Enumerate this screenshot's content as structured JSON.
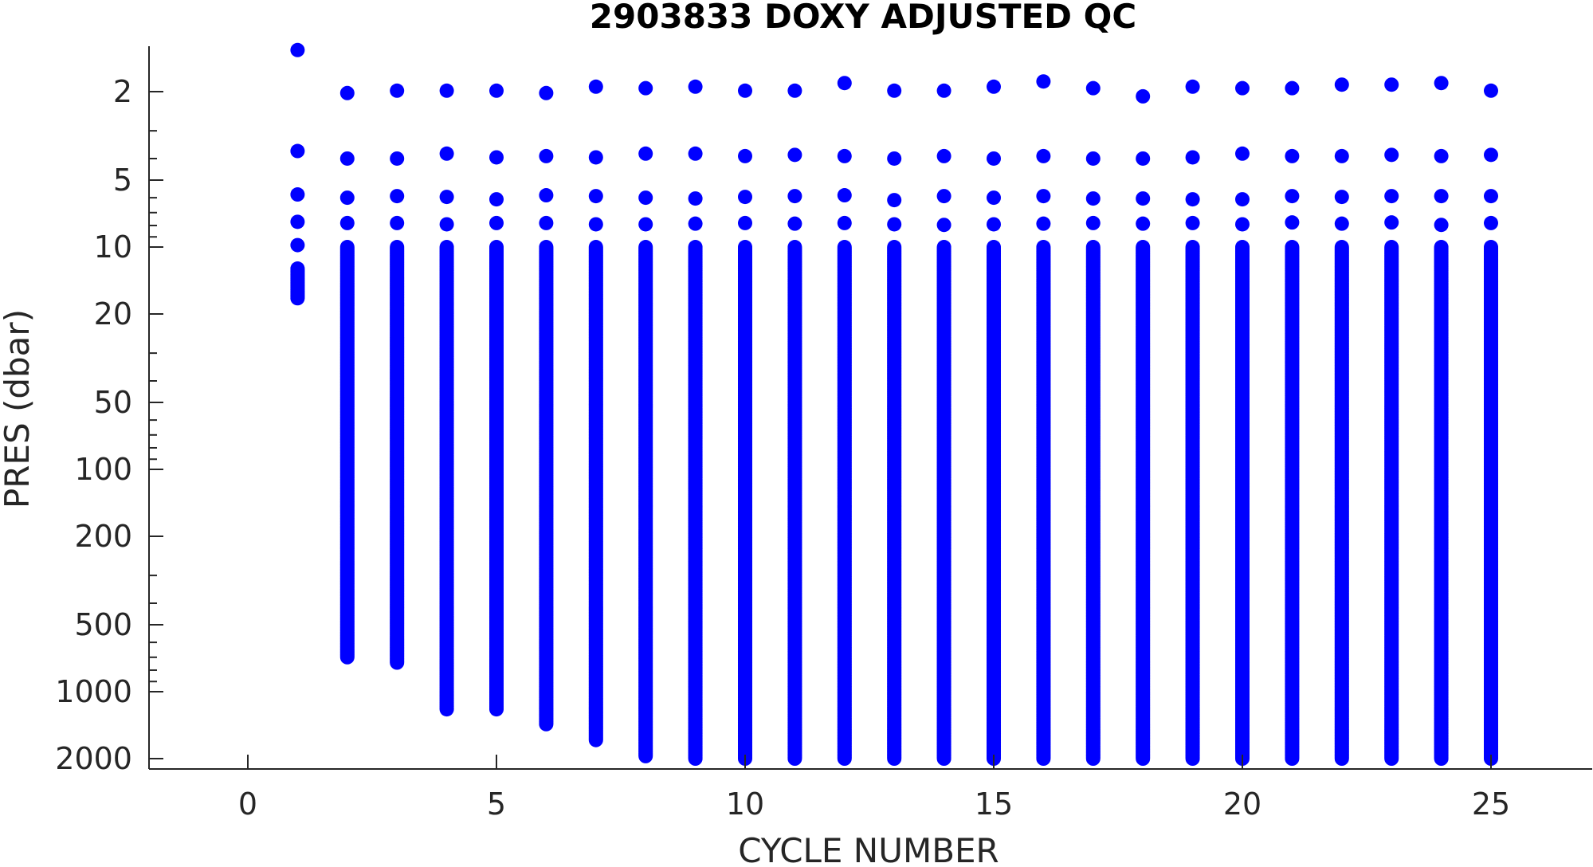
{
  "chart_data": {
    "type": "scatter",
    "title": "2903833  DOXY ADJUSTED QC",
    "xlabel": "CYCLE NUMBER",
    "ylabel": "PRES (dbar)",
    "xlim": [
      -2,
      27
    ],
    "ylim": [
      2200,
      1.2
    ],
    "y_scale": "log",
    "y_reversed": true,
    "x_ticks": [
      0,
      5,
      10,
      15,
      20,
      25
    ],
    "x_tick_labels": [
      "0",
      "5",
      "10",
      "15",
      "20",
      "25"
    ],
    "y_ticks": [
      2,
      5,
      10,
      20,
      50,
      100,
      200,
      500,
      1000,
      2000
    ],
    "y_tick_labels": [
      "2",
      "5",
      "10",
      "20",
      "50",
      "100",
      "200",
      "500",
      "1000",
      "2000"
    ],
    "grid": false,
    "marker_color": "#0000ff",
    "profiles": [
      {
        "cycle": 1,
        "surface_pres": [
          1.3,
          3.7,
          5.8,
          7.7,
          9.8
        ],
        "max_pres": 17
      },
      {
        "cycle": 2,
        "surface_pres": [
          2.03,
          4.0,
          6.0,
          7.8
        ],
        "max_pres": 700
      },
      {
        "cycle": 3,
        "surface_pres": [
          1.98,
          4.0,
          5.9,
          7.8
        ],
        "max_pres": 740
      },
      {
        "cycle": 4,
        "surface_pres": [
          1.98,
          3.8,
          5.95,
          7.9
        ],
        "max_pres": 1200
      },
      {
        "cycle": 5,
        "surface_pres": [
          1.98,
          3.95,
          6.1,
          7.8
        ],
        "max_pres": 1200
      },
      {
        "cycle": 6,
        "surface_pres": [
          2.03,
          3.9,
          5.85,
          7.8
        ],
        "max_pres": 1400
      },
      {
        "cycle": 7,
        "surface_pres": [
          1.9,
          3.95,
          5.9,
          7.9
        ],
        "max_pres": 1650
      },
      {
        "cycle": 8,
        "surface_pres": [
          1.93,
          3.8,
          6.0,
          7.9
        ],
        "max_pres": 1950
      },
      {
        "cycle": 9,
        "surface_pres": [
          1.9,
          3.8,
          6.05,
          7.85
        ],
        "max_pres": 2000
      },
      {
        "cycle": 10,
        "surface_pres": [
          1.98,
          3.9,
          5.95,
          7.8
        ],
        "max_pres": 2000
      },
      {
        "cycle": 11,
        "surface_pres": [
          1.98,
          3.85,
          5.9,
          7.85
        ],
        "max_pres": 2000
      },
      {
        "cycle": 12,
        "surface_pres": [
          1.83,
          3.9,
          5.85,
          7.8
        ],
        "max_pres": 2000
      },
      {
        "cycle": 13,
        "surface_pres": [
          1.98,
          4.0,
          6.15,
          7.9
        ],
        "max_pres": 2000
      },
      {
        "cycle": 14,
        "surface_pres": [
          1.98,
          3.9,
          5.9,
          7.95
        ],
        "max_pres": 2000
      },
      {
        "cycle": 15,
        "surface_pres": [
          1.9,
          4.0,
          6.0,
          7.9
        ],
        "max_pres": 2000
      },
      {
        "cycle": 16,
        "surface_pres": [
          1.8,
          3.9,
          5.9,
          7.85
        ],
        "max_pres": 2000
      },
      {
        "cycle": 17,
        "surface_pres": [
          1.93,
          4.0,
          6.05,
          7.8
        ],
        "max_pres": 2000
      },
      {
        "cycle": 18,
        "surface_pres": [
          2.1,
          4.0,
          6.05,
          7.85
        ],
        "max_pres": 2000
      },
      {
        "cycle": 19,
        "surface_pres": [
          1.9,
          3.95,
          6.1,
          7.8
        ],
        "max_pres": 2000
      },
      {
        "cycle": 20,
        "surface_pres": [
          1.93,
          3.8,
          6.1,
          7.9
        ],
        "max_pres": 2000
      },
      {
        "cycle": 21,
        "surface_pres": [
          1.93,
          3.9,
          5.9,
          7.75
        ],
        "max_pres": 2000
      },
      {
        "cycle": 22,
        "surface_pres": [
          1.86,
          3.9,
          5.95,
          7.85
        ],
        "max_pres": 2000
      },
      {
        "cycle": 23,
        "surface_pres": [
          1.86,
          3.85,
          5.9,
          7.75
        ],
        "max_pres": 2000
      },
      {
        "cycle": 24,
        "surface_pres": [
          1.83,
          3.9,
          5.9,
          7.95
        ],
        "max_pres": 2000
      },
      {
        "cycle": 25,
        "surface_pres": [
          1.98,
          3.85,
          5.9,
          7.8
        ],
        "max_pres": 2000
      }
    ]
  }
}
